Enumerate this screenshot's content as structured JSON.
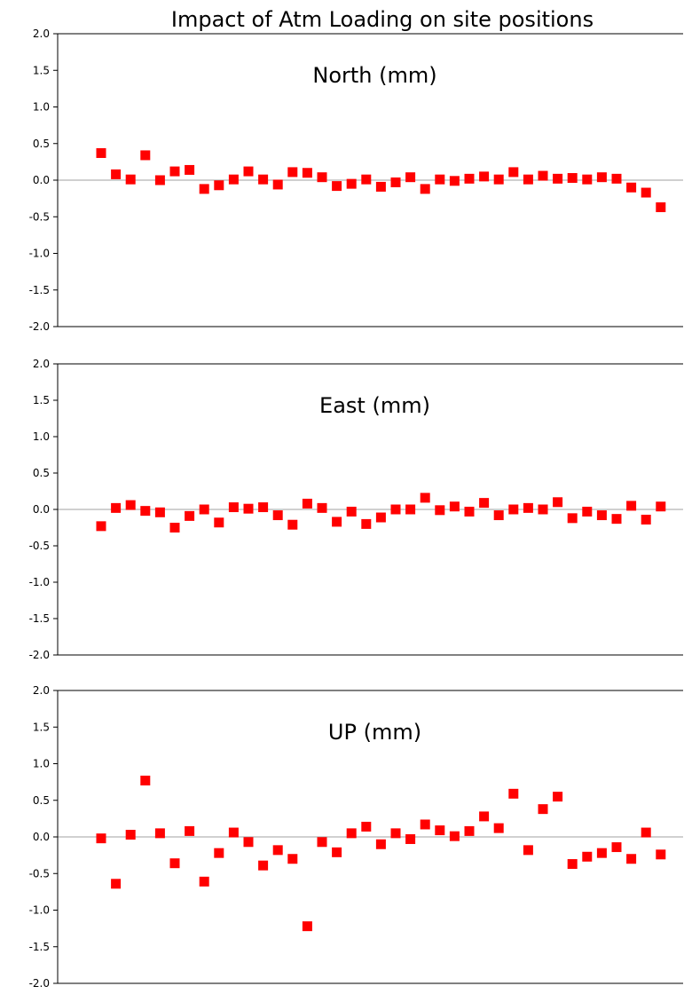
{
  "title": "Impact of Atm Loading on site positions",
  "marker_color": "#ff0000",
  "zero_line_color": "#a0a0a0",
  "axis_color": "#000000",
  "chart_data": [
    {
      "type": "scatter",
      "title": "North (mm)",
      "ylim": [
        -2.0,
        2.0
      ],
      "yticks": [
        "2.0",
        "1.5",
        "1.0",
        "0.5",
        "0.0",
        "-0.5",
        "-1.0",
        "-1.5",
        "-2.0"
      ],
      "x": [
        1,
        2,
        3,
        4,
        5,
        6,
        7,
        8,
        9,
        10,
        11,
        12,
        13,
        14,
        15,
        16,
        17,
        18,
        19,
        20,
        21,
        22,
        23,
        24,
        25,
        26,
        27,
        28,
        29,
        30,
        31,
        32,
        33,
        34,
        35,
        36,
        37,
        38,
        39
      ],
      "values": [
        0.37,
        0.08,
        0.01,
        0.34,
        0.0,
        0.12,
        0.14,
        -0.12,
        -0.07,
        0.01,
        0.12,
        0.01,
        -0.06,
        0.11,
        0.1,
        0.04,
        -0.08,
        -0.05,
        0.01,
        -0.09,
        -0.03,
        0.04,
        -0.12,
        0.01,
        -0.01,
        0.02,
        0.05,
        0.01,
        0.11,
        0.01,
        0.06,
        0.02,
        0.03,
        0.01,
        0.04,
        0.02,
        -0.1,
        -0.17,
        -0.37
      ],
      "grid": false,
      "legend": "none"
    },
    {
      "type": "scatter",
      "title": "East (mm)",
      "ylim": [
        -2.0,
        2.0
      ],
      "yticks": [
        "2.0",
        "1.5",
        "1.0",
        "0.5",
        "0.0",
        "-0.5",
        "-1.0",
        "-1.5",
        "-2.0"
      ],
      "x": [
        1,
        2,
        3,
        4,
        5,
        6,
        7,
        8,
        9,
        10,
        11,
        12,
        13,
        14,
        15,
        16,
        17,
        18,
        19,
        20,
        21,
        22,
        23,
        24,
        25,
        26,
        27,
        28,
        29,
        30,
        31,
        32,
        33,
        34,
        35,
        36,
        37,
        38,
        39
      ],
      "values": [
        -0.23,
        0.02,
        0.06,
        -0.02,
        -0.04,
        -0.25,
        -0.09,
        0.0,
        -0.18,
        0.03,
        0.01,
        0.03,
        -0.08,
        -0.21,
        0.08,
        0.02,
        -0.17,
        -0.03,
        -0.2,
        -0.11,
        0.0,
        0.0,
        0.16,
        -0.01,
        0.04,
        -0.03,
        0.09,
        -0.08,
        0.0,
        0.02,
        0.0,
        0.1,
        -0.12,
        -0.03,
        -0.08,
        -0.13,
        0.05,
        -0.14,
        0.04
      ],
      "grid": false,
      "legend": "none"
    },
    {
      "type": "scatter",
      "title": "UP (mm)",
      "ylim": [
        -2.0,
        2.0
      ],
      "yticks": [
        "2.0",
        "1.5",
        "1.0",
        "0.5",
        "0.0",
        "-0.5",
        "-1.0",
        "-1.5",
        "-2.0"
      ],
      "x": [
        1,
        2,
        3,
        4,
        5,
        6,
        7,
        8,
        9,
        10,
        11,
        12,
        13,
        14,
        15,
        16,
        17,
        18,
        19,
        20,
        21,
        22,
        23,
        24,
        25,
        26,
        27,
        28,
        29,
        30,
        31,
        32,
        33,
        34,
        35,
        36,
        37,
        38,
        39
      ],
      "values": [
        -0.02,
        -0.64,
        0.03,
        0.77,
        0.05,
        -0.36,
        0.08,
        -0.61,
        -0.22,
        0.06,
        -0.07,
        -0.39,
        -0.18,
        -0.3,
        -1.22,
        -0.07,
        -0.21,
        0.05,
        0.14,
        -0.1,
        0.05,
        -0.03,
        0.17,
        0.09,
        0.01,
        0.08,
        0.28,
        0.12,
        0.59,
        -0.18,
        0.38,
        0.55,
        -0.37,
        -0.27,
        -0.22,
        -0.14,
        -0.3,
        0.06,
        -0.24
      ],
      "grid": false,
      "legend": "none"
    }
  ]
}
